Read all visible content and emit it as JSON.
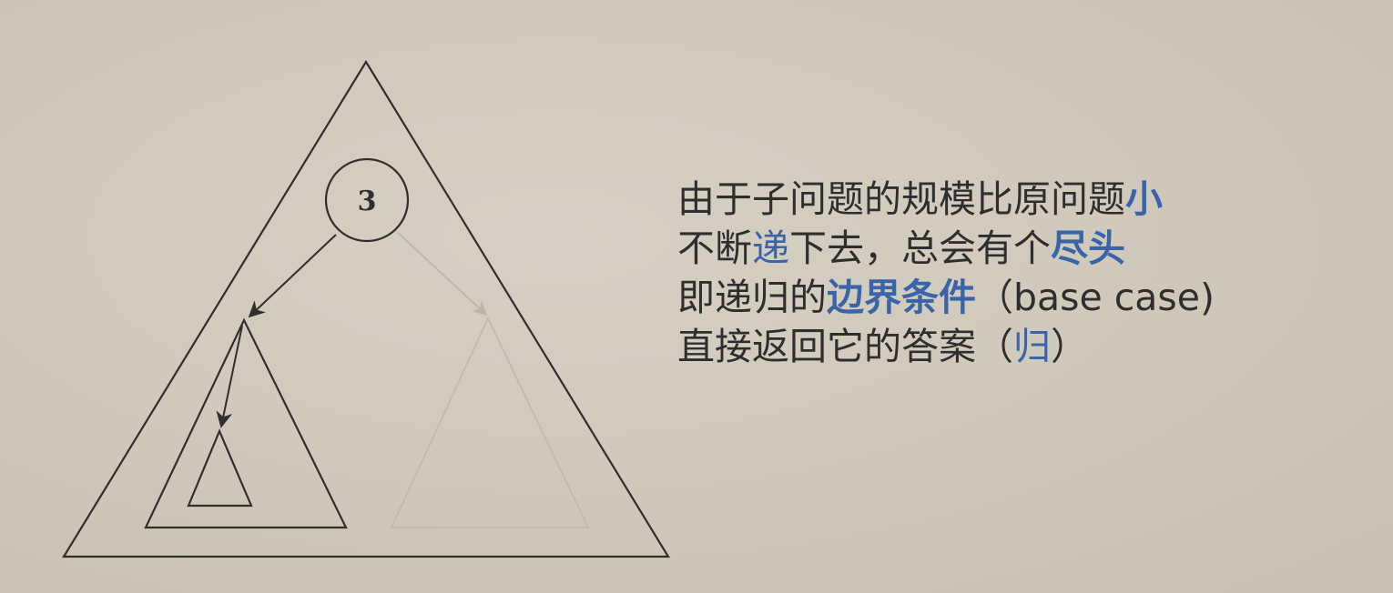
{
  "diagram": {
    "node_label": "3"
  },
  "text": {
    "line1": {
      "before": "由于子问题的规模比原问题",
      "highlight": "小"
    },
    "line2": {
      "before": "不断",
      "highlight": "递",
      "middle": "下去，总会有个",
      "highlight2": "尽头"
    },
    "line3": {
      "before": "即递归的",
      "highlight": "边界条件",
      "after": "（base case)"
    },
    "line4": {
      "before": "直接返回它的答案（",
      "highlight": "归",
      "after": "）"
    }
  },
  "colors": {
    "text": "#2e2e2e",
    "highlight": "#3a64a8",
    "background": "#d2ccbf",
    "faded_lines": "#bdb5a8"
  }
}
